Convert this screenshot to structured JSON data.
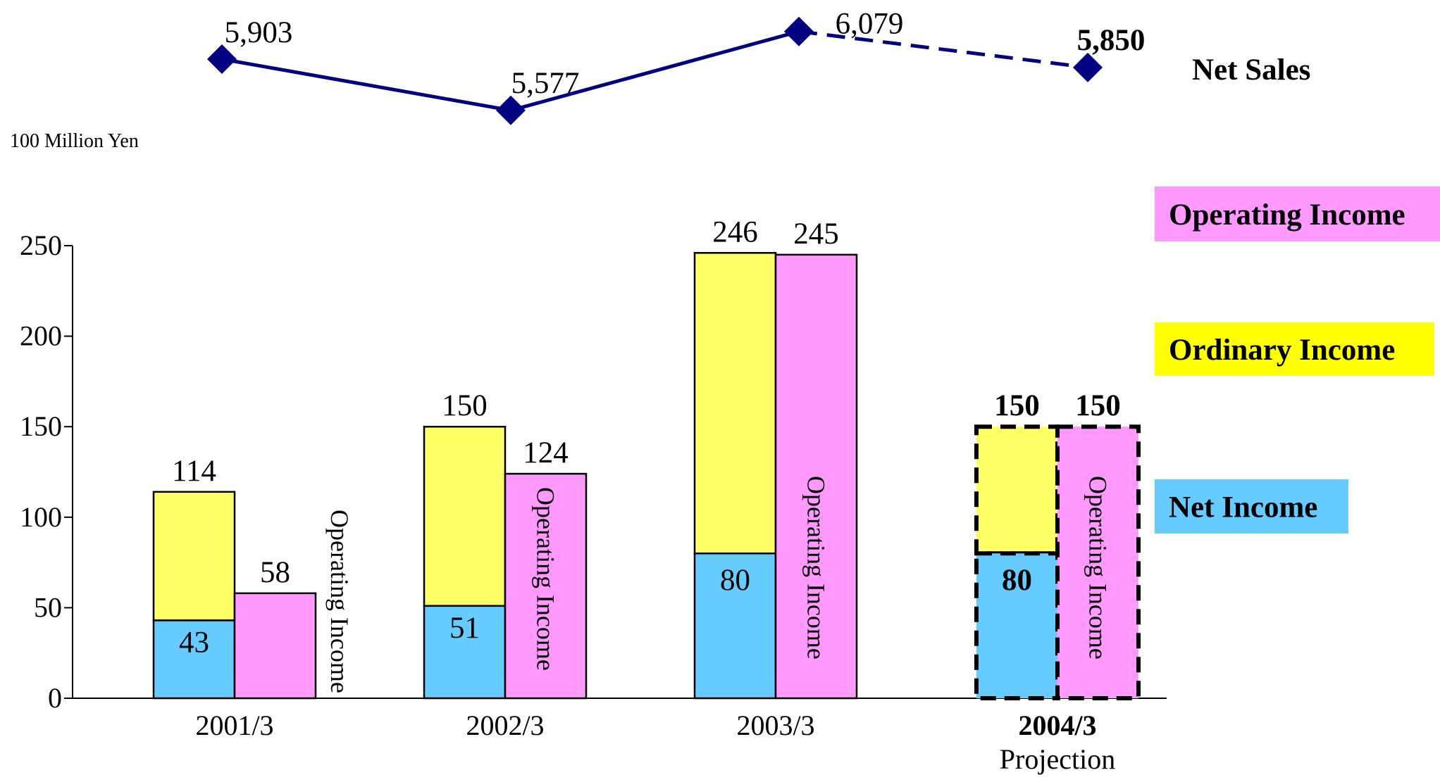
{
  "chart_data": [
    {
      "type": "line",
      "series_label": "Net Sales",
      "categories": [
        "2001/3",
        "2002/3",
        "2003/3",
        "2004/3"
      ],
      "values": [
        5903,
        5577,
        6079,
        5850
      ],
      "value_labels": [
        "5,903",
        "5,577",
        "6,079",
        "5,850"
      ],
      "last_point_projection": true,
      "color": "#000080"
    },
    {
      "type": "bar",
      "unit_label": "100 Million Yen",
      "ylim": [
        0,
        250
      ],
      "yticks": [
        "0",
        "50",
        "100",
        "150",
        "200",
        "250"
      ],
      "ytick_values": [
        0,
        50,
        100,
        150,
        200,
        250
      ],
      "categories": [
        "2001/3",
        "2002/3",
        "2003/3",
        "2004/3"
      ],
      "projection_note": "Projection",
      "projection_index": 3,
      "series": [
        {
          "name": "Net Income",
          "values": [
            43,
            51,
            80,
            80
          ],
          "labels": [
            "43",
            "51",
            "80",
            "80"
          ],
          "color": "#66ccff"
        },
        {
          "name": "Ordinary Income",
          "values": [
            114,
            150,
            246,
            150
          ],
          "labels": [
            "114",
            "150",
            "246",
            "150"
          ],
          "color": "#ffff66"
        },
        {
          "name": "Operating Income",
          "values": [
            58,
            124,
            245,
            150
          ],
          "labels": [
            "58",
            "124",
            "245",
            "150"
          ],
          "color": "#ff99ff"
        }
      ],
      "bar_inner_label": "Operating Income",
      "legend": [
        {
          "label": "Operating Income",
          "color": "#ff99ff"
        },
        {
          "label": "Ordinary Income",
          "color": "#ffff00"
        },
        {
          "label": "Net Income",
          "color": "#66ccff"
        }
      ]
    }
  ]
}
